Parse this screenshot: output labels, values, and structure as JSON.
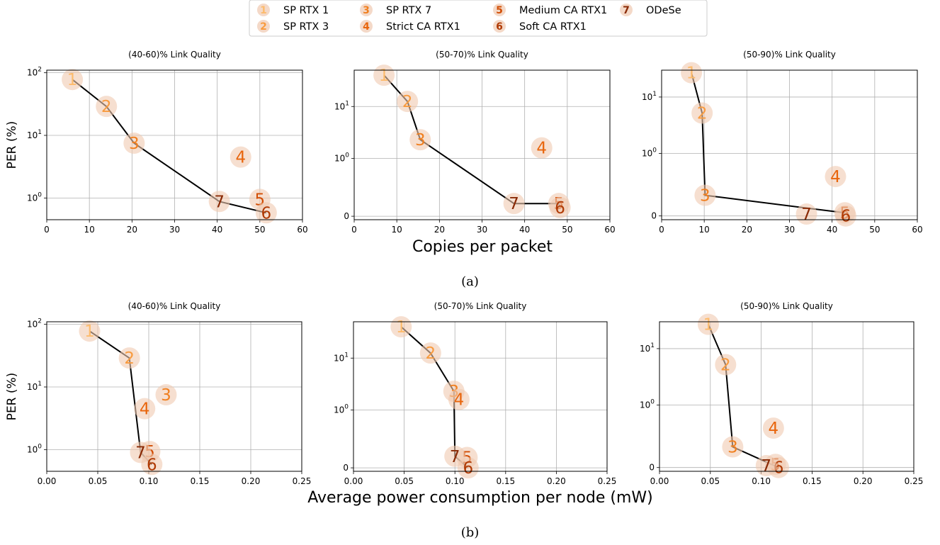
{
  "legend": {
    "items": [
      {
        "marker": "1",
        "label": "SP RTX 1",
        "color": "#fdbb6c"
      },
      {
        "marker": "2",
        "label": "SP RTX 3",
        "color": "#f89b3f"
      },
      {
        "marker": "3",
        "label": "SP RTX 7",
        "color": "#f07f1f"
      },
      {
        "marker": "4",
        "label": "Strict CA RTX1",
        "color": "#e8650c"
      },
      {
        "marker": "5",
        "label": "Medium CA RTX1",
        "color": "#d24e05"
      },
      {
        "marker": "6",
        "label": "Soft CA RTX1",
        "color": "#b03a04"
      },
      {
        "marker": "7",
        "label": "ODeSe",
        "color": "#8a2a05"
      }
    ],
    "bubble_color": "#f0c9b0"
  },
  "rows": [
    {
      "xlabel": "Copies per packet",
      "caption": "(a)"
    },
    {
      "xlabel": "Average power consumption per node (mW)",
      "caption": "(b)"
    }
  ],
  "ylabel": "PER (%)",
  "chart_data": [
    {
      "type": "scatter",
      "title": "(40-60)% Link Quality",
      "xlim": [
        0,
        60
      ],
      "ylim": [
        0.45,
        110
      ],
      "yscale": "log",
      "xticks": [
        "0",
        "10",
        "20",
        "30",
        "40",
        "50",
        "60"
      ],
      "yticks": [
        {
          "value": 1,
          "label": "10^0"
        },
        {
          "value": 10,
          "label": "10^1"
        },
        {
          "value": 100,
          "label": "10^2"
        }
      ],
      "points": [
        {
          "id": "1",
          "x": 6,
          "y": 78
        },
        {
          "id": "2",
          "x": 14,
          "y": 29
        },
        {
          "id": "3",
          "x": 20.5,
          "y": 7.5
        },
        {
          "id": "4",
          "x": 45.5,
          "y": 4.5
        },
        {
          "id": "5",
          "x": 50,
          "y": 0.95
        },
        {
          "id": "6",
          "x": 51.5,
          "y": 0.58
        },
        {
          "id": "7",
          "x": 40.5,
          "y": 0.88
        }
      ],
      "line": [
        "1",
        "2",
        "3",
        "7",
        "6"
      ],
      "grid": true
    },
    {
      "type": "scatter",
      "title": "(50-70)% Link Quality",
      "xlim": [
        0,
        60
      ],
      "ylim": [
        -0.06,
        50
      ],
      "yscale": "symlog",
      "xticks": [
        "0",
        "10",
        "20",
        "30",
        "40",
        "50",
        "60"
      ],
      "yticks": [
        {
          "value": 0,
          "label": "0"
        },
        {
          "value": 1,
          "label": "10^0"
        },
        {
          "value": 10,
          "label": "10^1"
        }
      ],
      "points": [
        {
          "id": "1",
          "x": 7,
          "y": 40
        },
        {
          "id": "2",
          "x": 12.5,
          "y": 12.5
        },
        {
          "id": "3",
          "x": 15.5,
          "y": 2.3
        },
        {
          "id": "4",
          "x": 44,
          "y": 1.6
        },
        {
          "id": "5",
          "x": 48,
          "y": 0.22
        },
        {
          "id": "6",
          "x": 48.3,
          "y": 0.15
        },
        {
          "id": "7",
          "x": 37.5,
          "y": 0.22
        }
      ],
      "line": [
        "1",
        "2",
        "3",
        "7",
        "5",
        "6"
      ],
      "grid": true
    },
    {
      "type": "scatter",
      "title": "(50-90)% Link Quality",
      "xlim": [
        0,
        60
      ],
      "ylim": [
        -0.06,
        30
      ],
      "yscale": "symlog",
      "xticks": [
        "0",
        "10",
        "20",
        "30",
        "40",
        "50",
        "60"
      ],
      "yticks": [
        {
          "value": 0,
          "label": "0"
        },
        {
          "value": 1,
          "label": "10^0"
        },
        {
          "value": 10,
          "label": "10^1"
        }
      ],
      "points": [
        {
          "id": "1",
          "x": 7,
          "y": 27
        },
        {
          "id": "2",
          "x": 9.5,
          "y": 5.2
        },
        {
          "id": "3",
          "x": 10.2,
          "y": 0.33
        },
        {
          "id": "4",
          "x": 40.8,
          "y": 0.63
        },
        {
          "id": "5",
          "x": 43,
          "y": 0.05
        },
        {
          "id": "6",
          "x": 43.2,
          "y": 0.0
        },
        {
          "id": "7",
          "x": 34,
          "y": 0.03
        }
      ],
      "line": [
        "1",
        "2",
        "3",
        "5"
      ],
      "grid": true
    },
    {
      "type": "scatter",
      "title": "(40-60)% Link Quality",
      "xlim": [
        0,
        0.25
      ],
      "ylim": [
        0.45,
        110
      ],
      "yscale": "log",
      "xticks": [
        "0.00",
        "0.05",
        "0.10",
        "0.15",
        "0.20",
        "0.25"
      ],
      "yticks": [
        {
          "value": 1,
          "label": "10^0"
        },
        {
          "value": 10,
          "label": "10^1"
        },
        {
          "value": 100,
          "label": "10^2"
        }
      ],
      "points": [
        {
          "id": "1",
          "x": 0.042,
          "y": 78
        },
        {
          "id": "2",
          "x": 0.081,
          "y": 29
        },
        {
          "id": "3",
          "x": 0.117,
          "y": 7.5
        },
        {
          "id": "4",
          "x": 0.096,
          "y": 4.5
        },
        {
          "id": "5",
          "x": 0.101,
          "y": 0.93
        },
        {
          "id": "6",
          "x": 0.103,
          "y": 0.58
        },
        {
          "id": "7",
          "x": 0.092,
          "y": 0.9
        }
      ],
      "line": [
        "1",
        "2",
        "7",
        "6"
      ],
      "grid": true
    },
    {
      "type": "scatter",
      "title": "(50-70)% Link Quality",
      "xlim": [
        0,
        0.25
      ],
      "ylim": [
        -0.06,
        50
      ],
      "yscale": "symlog",
      "xticks": [
        "0.00",
        "0.05",
        "0.10",
        "0.15",
        "0.20",
        "0.25"
      ],
      "yticks": [
        {
          "value": 0,
          "label": "0"
        },
        {
          "value": 1,
          "label": "10^0"
        },
        {
          "value": 10,
          "label": "10^1"
        }
      ],
      "points": [
        {
          "id": "1",
          "x": 0.047,
          "y": 40
        },
        {
          "id": "2",
          "x": 0.076,
          "y": 12.5
        },
        {
          "id": "3",
          "x": 0.099,
          "y": 2.3
        },
        {
          "id": "4",
          "x": 0.104,
          "y": 1.6
        },
        {
          "id": "5",
          "x": 0.112,
          "y": 0.18
        },
        {
          "id": "6",
          "x": 0.113,
          "y": 0.0
        },
        {
          "id": "7",
          "x": 0.1,
          "y": 0.2
        }
      ],
      "line": [
        "1",
        "2",
        "3",
        "7",
        "6"
      ],
      "grid": true
    },
    {
      "type": "scatter",
      "title": "(50-90)% Link Quality",
      "xlim": [
        0,
        0.25
      ],
      "ylim": [
        -0.06,
        30
      ],
      "yscale": "symlog",
      "xticks": [
        "0.00",
        "0.05",
        "0.10",
        "0.15",
        "0.20",
        "0.25"
      ],
      "yticks": [
        {
          "value": 0,
          "label": "0"
        },
        {
          "value": 1,
          "label": "10^0"
        },
        {
          "value": 10,
          "label": "10^1"
        }
      ],
      "points": [
        {
          "id": "1",
          "x": 0.048,
          "y": 27
        },
        {
          "id": "2",
          "x": 0.065,
          "y": 5.2
        },
        {
          "id": "3",
          "x": 0.072,
          "y": 0.33
        },
        {
          "id": "4",
          "x": 0.112,
          "y": 0.63
        },
        {
          "id": "5",
          "x": 0.114,
          "y": 0.05
        },
        {
          "id": "6",
          "x": 0.117,
          "y": 0.0
        },
        {
          "id": "7",
          "x": 0.105,
          "y": 0.03
        }
      ],
      "line": [
        "1",
        "2",
        "3",
        "6"
      ],
      "grid": true
    }
  ]
}
